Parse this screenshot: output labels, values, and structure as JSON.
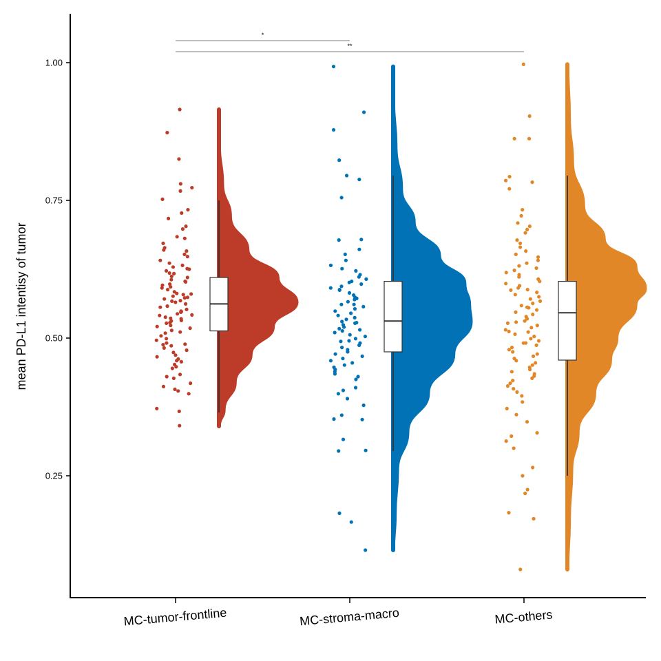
{
  "chart_data": {
    "type": "raincloud",
    "title": "",
    "ylabel": "mean PD-L1 intentisy of tumor",
    "xlabel": "",
    "ylim": [
      0.03,
      1.09
    ],
    "yticks": [
      0.25,
      0.5,
      0.75,
      1.0
    ],
    "ytick_labels": [
      "0.25",
      "0.50",
      "0.75",
      "1.00"
    ],
    "grid": false,
    "categories": [
      "MC-tumor-frontline",
      "MC-stroma-macro",
      "MC-others"
    ],
    "series": [
      {
        "category": "MC-tumor-frontline",
        "color": "#BC3C29",
        "box": {
          "whisker_low": 0.365,
          "q1": 0.513,
          "median": 0.562,
          "q3": 0.61,
          "whisker_high": 0.75
        },
        "range": [
          0.34,
          0.915
        ],
        "density": [
          [
            0.34,
            0.02
          ],
          [
            0.37,
            0.08
          ],
          [
            0.42,
            0.22
          ],
          [
            0.47,
            0.42
          ],
          [
            0.52,
            0.7
          ],
          [
            0.565,
            1.0
          ],
          [
            0.61,
            0.76
          ],
          [
            0.66,
            0.38
          ],
          [
            0.72,
            0.16
          ],
          [
            0.78,
            0.06
          ],
          [
            0.85,
            0.02
          ],
          [
            0.915,
            0.01
          ]
        ],
        "points": [
          0.915,
          0.873,
          0.825,
          0.773,
          0.78,
          0.767,
          0.752,
          0.733,
          0.727,
          0.703,
          0.698,
          0.717,
          0.681,
          0.672,
          0.684,
          0.664,
          0.66,
          0.652,
          0.648,
          0.658,
          0.641,
          0.629,
          0.632,
          0.636,
          0.622,
          0.618,
          0.625,
          0.61,
          0.606,
          0.612,
          0.602,
          0.596,
          0.591,
          0.588,
          0.598,
          0.584,
          0.58,
          0.576,
          0.579,
          0.571,
          0.567,
          0.574,
          0.562,
          0.558,
          0.565,
          0.552,
          0.548,
          0.556,
          0.544,
          0.541,
          0.549,
          0.536,
          0.532,
          0.538,
          0.528,
          0.523,
          0.531,
          0.518,
          0.514,
          0.521,
          0.509,
          0.504,
          0.511,
          0.496,
          0.491,
          0.499,
          0.486,
          0.482,
          0.489,
          0.474,
          0.469,
          0.478,
          0.462,
          0.457,
          0.466,
          0.448,
          0.445,
          0.452,
          0.434,
          0.43,
          0.427,
          0.418,
          0.412,
          0.407,
          0.399,
          0.404,
          0.372,
          0.367,
          0.341,
          0.593,
          0.603,
          0.547,
          0.527,
          0.573,
          0.542,
          0.617,
          0.488,
          0.459,
          0.568,
          0.626,
          0.581,
          0.535
        ]
      },
      {
        "category": "MC-stroma-macro",
        "color": "#0072B5",
        "box": {
          "whisker_low": 0.295,
          "q1": 0.475,
          "median": 0.531,
          "q3": 0.603,
          "whisker_high": 0.795
        },
        "range": [
          0.115,
          0.993
        ],
        "density": [
          [
            0.115,
            0.02
          ],
          [
            0.18,
            0.04
          ],
          [
            0.26,
            0.07
          ],
          [
            0.33,
            0.2
          ],
          [
            0.4,
            0.46
          ],
          [
            0.47,
            0.78
          ],
          [
            0.53,
            1.0
          ],
          [
            0.56,
            0.98
          ],
          [
            0.6,
            0.92
          ],
          [
            0.65,
            0.6
          ],
          [
            0.71,
            0.28
          ],
          [
            0.77,
            0.12
          ],
          [
            0.85,
            0.05
          ],
          [
            0.93,
            0.02
          ],
          [
            0.993,
            0.01
          ]
        ],
        "points": [
          0.993,
          0.91,
          0.878,
          0.823,
          0.795,
          0.788,
          0.755,
          0.679,
          0.678,
          0.661,
          0.652,
          0.641,
          0.632,
          0.626,
          0.622,
          0.615,
          0.611,
          0.607,
          0.603,
          0.598,
          0.594,
          0.591,
          0.587,
          0.582,
          0.578,
          0.574,
          0.57,
          0.566,
          0.561,
          0.557,
          0.553,
          0.549,
          0.545,
          0.541,
          0.537,
          0.534,
          0.53,
          0.527,
          0.524,
          0.52,
          0.517,
          0.513,
          0.51,
          0.506,
          0.503,
          0.499,
          0.495,
          0.491,
          0.487,
          0.483,
          0.479,
          0.475,
          0.471,
          0.467,
          0.463,
          0.459,
          0.455,
          0.451,
          0.447,
          0.443,
          0.439,
          0.435,
          0.43,
          0.425,
          0.41,
          0.405,
          0.399,
          0.39,
          0.378,
          0.36,
          0.353,
          0.352,
          0.316,
          0.296,
          0.295,
          0.182,
          0.166,
          0.115,
          0.588,
          0.572,
          0.561,
          0.515,
          0.494,
          0.601,
          0.528
        ]
      },
      {
        "category": "MC-others",
        "color": "#E18727",
        "box": {
          "whisker_low": 0.25,
          "q1": 0.46,
          "median": 0.546,
          "q3": 0.603,
          "whisker_high": 0.795
        },
        "range": [
          0.08,
          0.997
        ],
        "density": [
          [
            0.08,
            0.02
          ],
          [
            0.17,
            0.04
          ],
          [
            0.26,
            0.07
          ],
          [
            0.33,
            0.15
          ],
          [
            0.4,
            0.36
          ],
          [
            0.46,
            0.56
          ],
          [
            0.5,
            0.64
          ],
          [
            0.56,
            0.88
          ],
          [
            0.59,
            1.0
          ],
          [
            0.63,
            0.88
          ],
          [
            0.68,
            0.48
          ],
          [
            0.74,
            0.22
          ],
          [
            0.82,
            0.08
          ],
          [
            0.9,
            0.04
          ],
          [
            0.997,
            0.02
          ]
        ],
        "points": [
          0.997,
          0.903,
          0.862,
          0.862,
          0.793,
          0.783,
          0.786,
          0.771,
          0.733,
          0.722,
          0.709,
          0.703,
          0.697,
          0.691,
          0.678,
          0.672,
          0.665,
          0.658,
          0.652,
          0.647,
          0.641,
          0.636,
          0.631,
          0.627,
          0.623,
          0.619,
          0.615,
          0.611,
          0.607,
          0.603,
          0.599,
          0.595,
          0.591,
          0.587,
          0.583,
          0.579,
          0.575,
          0.571,
          0.567,
          0.563,
          0.559,
          0.555,
          0.551,
          0.547,
          0.543,
          0.539,
          0.535,
          0.531,
          0.527,
          0.523,
          0.519,
          0.515,
          0.511,
          0.507,
          0.503,
          0.499,
          0.495,
          0.491,
          0.487,
          0.483,
          0.479,
          0.475,
          0.471,
          0.467,
          0.463,
          0.459,
          0.455,
          0.451,
          0.447,
          0.443,
          0.439,
          0.435,
          0.431,
          0.427,
          0.423,
          0.418,
          0.413,
          0.408,
          0.402,
          0.395,
          0.384,
          0.372,
          0.361,
          0.348,
          0.328,
          0.322,
          0.313,
          0.3,
          0.265,
          0.25,
          0.225,
          0.218,
          0.183,
          0.172,
          0.08,
          0.588,
          0.556,
          0.529,
          0.512,
          0.491
        ]
      }
    ],
    "significance": [
      {
        "from": "MC-tumor-frontline",
        "to": "MC-stroma-macro",
        "label": "*",
        "y": 1.04
      },
      {
        "from": "MC-tumor-frontline",
        "to": "MC-others",
        "label": "**",
        "y": 1.02
      }
    ]
  }
}
